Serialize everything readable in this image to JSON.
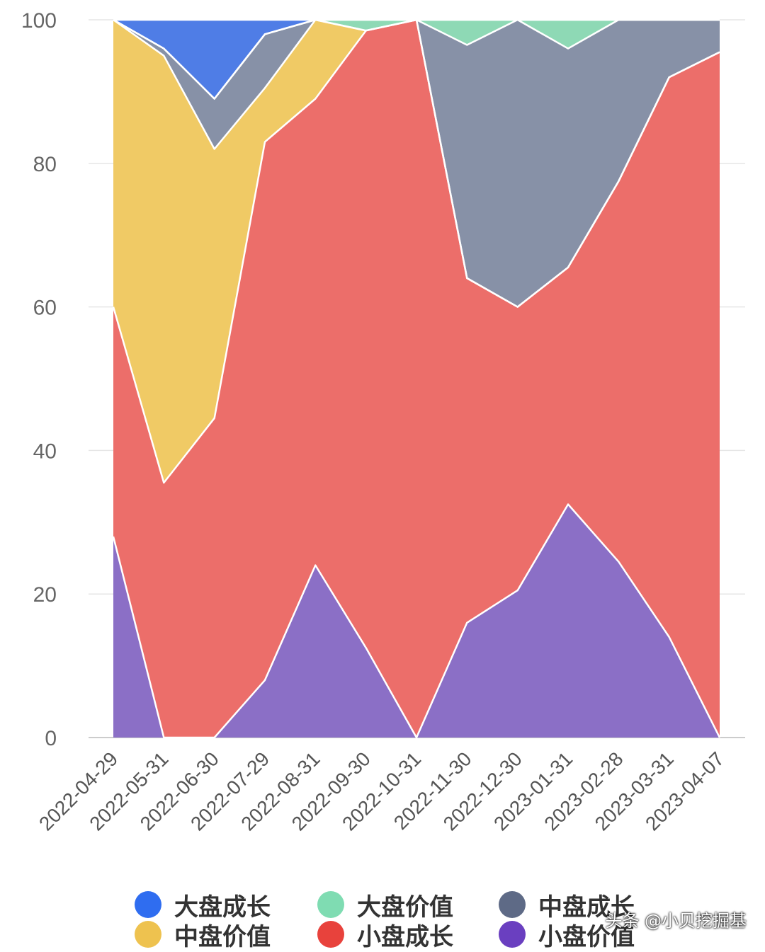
{
  "chart_data": {
    "type": "area",
    "stacked": true,
    "x": [
      "2022-04-29",
      "2022-05-31",
      "2022-06-30",
      "2022-07-29",
      "2022-08-31",
      "2022-09-30",
      "2022-10-31",
      "2022-11-30",
      "2022-12-30",
      "2023-01-31",
      "2023-02-28",
      "2023-03-31",
      "2023-04-07"
    ],
    "ylim": [
      0,
      100
    ],
    "yticks": [
      "0",
      "20",
      "40",
      "60",
      "80",
      "100"
    ],
    "grid": true,
    "legend_position": "bottom",
    "series": [
      {
        "name": "小盘价值",
        "color": "#8b6fc6",
        "values": [
          28,
          0,
          0,
          8,
          24,
          12.5,
          0,
          16,
          20.5,
          32.5,
          24.5,
          14,
          0
        ]
      },
      {
        "name": "小盘成长",
        "color": "#ec6e6a",
        "values": [
          32,
          35.5,
          44.5,
          75,
          65,
          86,
          100,
          48,
          39.5,
          33,
          53,
          78,
          95.5
        ]
      },
      {
        "name": "中盘价值",
        "color": "#f0ca65",
        "values": [
          40,
          59.5,
          37.5,
          7.5,
          11,
          0,
          0,
          0,
          0,
          0,
          0,
          0,
          0
        ]
      },
      {
        "name": "中盘成长",
        "color": "#8791a7",
        "values": [
          0,
          1,
          7,
          7.5,
          0,
          0,
          0,
          32.5,
          40,
          30.5,
          22.5,
          8,
          4.5
        ]
      },
      {
        "name": "大盘价值",
        "color": "#8ed9b5",
        "values": [
          0,
          0,
          0,
          0,
          0,
          1.5,
          0,
          3.5,
          0,
          4,
          0,
          0,
          0
        ]
      },
      {
        "name": "大盘成长",
        "color": "#4f7de6",
        "values": [
          0,
          4,
          11,
          2,
          0,
          0,
          0,
          0,
          0,
          0,
          0,
          0,
          0
        ]
      }
    ]
  },
  "legend": [
    {
      "label": "大盘成长",
      "color": "#2f6df0"
    },
    {
      "label": "大盘价值",
      "color": "#7fdcb2"
    },
    {
      "label": "中盘成长",
      "color": "#5e6a86"
    },
    {
      "label": "中盘价值",
      "color": "#eec24f"
    },
    {
      "label": "小盘成长",
      "color": "#e8423c"
    },
    {
      "label": "小盘价值",
      "color": "#6a3fc0"
    }
  ],
  "watermark": "头条 @小贝挖掘基"
}
